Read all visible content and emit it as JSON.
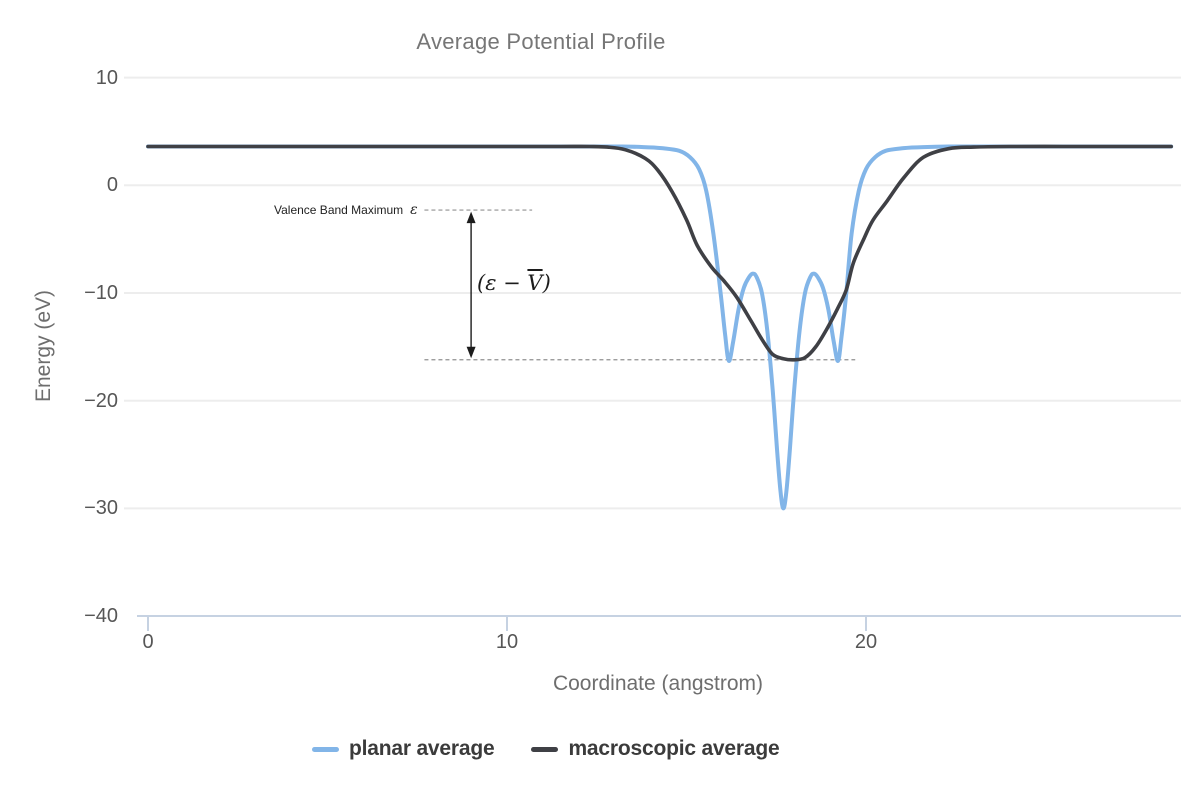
{
  "title": "Average Potential Profile",
  "axes": {
    "x_label": "Coordinate (angstrom)",
    "y_label": "Energy (eV)"
  },
  "legend": {
    "items": [
      {
        "label": "planar average",
        "color": "#82b5e8"
      },
      {
        "label": "macroscopic average",
        "color": "#3f4045"
      }
    ]
  },
  "annotations": {
    "vbm_text": "Valence Band Maximum",
    "epsilon_symbol": "ε",
    "gap_prefix": "(ε − ",
    "gap_vbar": "V",
    "gap_suffix": ")"
  },
  "colors": {
    "grid": "#ededed",
    "axis": "#c6d2e2",
    "dashed": "#909090",
    "arrow": "#1c1c1c",
    "planar": "#82b5e8",
    "macroscopic": "#3f4045"
  },
  "chart_data": {
    "type": "line",
    "title": "Average Potential Profile",
    "xlabel": "Coordinate (angstrom)",
    "ylabel": "Energy (eV)",
    "xlim": [
      -0.31,
      28.8
    ],
    "ylim": [
      -40,
      11.6
    ],
    "grid": "horizontal only",
    "legend_position": "bottom center",
    "x_ticks": [
      {
        "v": 0,
        "label": "0"
      },
      {
        "v": 10,
        "label": "10"
      },
      {
        "v": 20,
        "label": "20"
      }
    ],
    "y_ticks": [
      {
        "v": 10,
        "label": "10"
      },
      {
        "v": 0,
        "label": "0"
      },
      {
        "v": -10,
        "label": "−10"
      },
      {
        "v": -20,
        "label": "−20"
      },
      {
        "v": -30,
        "label": "−30"
      },
      {
        "v": -40,
        "label": "−40"
      }
    ],
    "annotations": {
      "vbm_level": {
        "y": -2.3,
        "x_start": 7.7,
        "x_end": 10.7,
        "label": "Valence Band Maximum ε"
      },
      "avg_level": {
        "y": -16.2,
        "x_start": 7.7,
        "x_end": 19.7
      },
      "arrow": {
        "x": 9.0,
        "from_y": -2.3,
        "to_y": -16.2,
        "label": "(ε − V̄)",
        "double_headed": true
      }
    },
    "series": [
      {
        "name": "planar average",
        "color": "#82b5e8",
        "points": [
          [
            0,
            3.6
          ],
          [
            2,
            3.6
          ],
          [
            4,
            3.6
          ],
          [
            6,
            3.6
          ],
          [
            8,
            3.6
          ],
          [
            10,
            3.6
          ],
          [
            11.5,
            3.6
          ],
          [
            12.5,
            3.6
          ],
          [
            13.2,
            3.6
          ],
          [
            13.8,
            3.55
          ],
          [
            14.3,
            3.45
          ],
          [
            14.8,
            3.2
          ],
          [
            15.1,
            2.6
          ],
          [
            15.35,
            1.5
          ],
          [
            15.55,
            -0.5
          ],
          [
            15.75,
            -4.5
          ],
          [
            15.95,
            -10
          ],
          [
            16.08,
            -14
          ],
          [
            16.18,
            -16.3
          ],
          [
            16.3,
            -14.5
          ],
          [
            16.45,
            -11.5
          ],
          [
            16.6,
            -9.5
          ],
          [
            16.75,
            -8.5
          ],
          [
            16.85,
            -8.2
          ],
          [
            16.95,
            -8.5
          ],
          [
            17.1,
            -10
          ],
          [
            17.25,
            -13.5
          ],
          [
            17.4,
            -19
          ],
          [
            17.52,
            -24.5
          ],
          [
            17.62,
            -28.5
          ],
          [
            17.7,
            -30
          ],
          [
            17.78,
            -28.5
          ],
          [
            17.88,
            -24.5
          ],
          [
            18,
            -19
          ],
          [
            18.15,
            -13.5
          ],
          [
            18.3,
            -10
          ],
          [
            18.45,
            -8.5
          ],
          [
            18.55,
            -8.2
          ],
          [
            18.65,
            -8.5
          ],
          [
            18.8,
            -9.5
          ],
          [
            18.95,
            -11.5
          ],
          [
            19.1,
            -14.5
          ],
          [
            19.22,
            -16.3
          ],
          [
            19.32,
            -14
          ],
          [
            19.45,
            -10
          ],
          [
            19.6,
            -4.5
          ],
          [
            19.8,
            -0.5
          ],
          [
            20,
            1.5
          ],
          [
            20.25,
            2.6
          ],
          [
            20.55,
            3.2
          ],
          [
            21.05,
            3.45
          ],
          [
            21.6,
            3.55
          ],
          [
            22.3,
            3.6
          ],
          [
            23.5,
            3.6
          ],
          [
            25,
            3.6
          ],
          [
            26.5,
            3.6
          ],
          [
            28.5,
            3.6
          ]
        ]
      },
      {
        "name": "macroscopic average",
        "color": "#3f4045",
        "points": [
          [
            0,
            3.6
          ],
          [
            2,
            3.6
          ],
          [
            4,
            3.6
          ],
          [
            6,
            3.6
          ],
          [
            8,
            3.6
          ],
          [
            10,
            3.6
          ],
          [
            11.5,
            3.6
          ],
          [
            12.3,
            3.6
          ],
          [
            12.8,
            3.55
          ],
          [
            13.3,
            3.3
          ],
          [
            13.85,
            2.5
          ],
          [
            14.2,
            1.4
          ],
          [
            14.6,
            -0.6
          ],
          [
            15,
            -3.2
          ],
          [
            15.3,
            -5.6
          ],
          [
            15.7,
            -7.6
          ],
          [
            16.05,
            -8.9
          ],
          [
            16.4,
            -10.4
          ],
          [
            16.8,
            -12.6
          ],
          [
            17.1,
            -14.3
          ],
          [
            17.4,
            -15.7
          ],
          [
            17.7,
            -16.1
          ],
          [
            18,
            -16.2
          ],
          [
            18.3,
            -16
          ],
          [
            18.6,
            -15
          ],
          [
            18.9,
            -13.4
          ],
          [
            19.2,
            -11.5
          ],
          [
            19.45,
            -9.7
          ],
          [
            19.65,
            -7.2
          ],
          [
            19.95,
            -4.9
          ],
          [
            20.2,
            -3.2
          ],
          [
            20.6,
            -1.4
          ],
          [
            21.05,
            0.7
          ],
          [
            21.6,
            2.6
          ],
          [
            22.3,
            3.4
          ],
          [
            23,
            3.55
          ],
          [
            24,
            3.6
          ],
          [
            25.5,
            3.6
          ],
          [
            27,
            3.6
          ],
          [
            28.5,
            3.6
          ]
        ]
      }
    ]
  }
}
